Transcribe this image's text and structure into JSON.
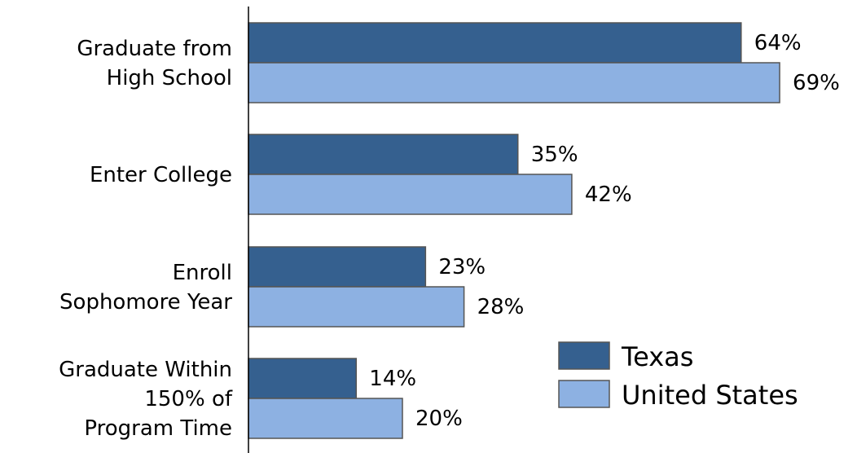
{
  "chart_data": {
    "type": "bar",
    "orientation": "horizontal",
    "categories": [
      [
        "Graduate from",
        "High School"
      ],
      [
        "Enter College"
      ],
      [
        "Enroll",
        "Sophomore Year"
      ],
      [
        "Graduate Within",
        "150% of",
        "Program Time"
      ]
    ],
    "series": [
      {
        "name": "Texas",
        "values": [
          64,
          35,
          23,
          14
        ],
        "labels": [
          "64%",
          "35%",
          "23%",
          "14%"
        ],
        "color": "#35608f"
      },
      {
        "name": "United States",
        "values": [
          69,
          42,
          28,
          20
        ],
        "labels": [
          "69%",
          "42%",
          "28%",
          "20%"
        ],
        "color": "#8db1e2"
      }
    ],
    "xlim": [
      0,
      73
    ],
    "grid": false,
    "legend": {
      "position": "bottom-right"
    }
  }
}
